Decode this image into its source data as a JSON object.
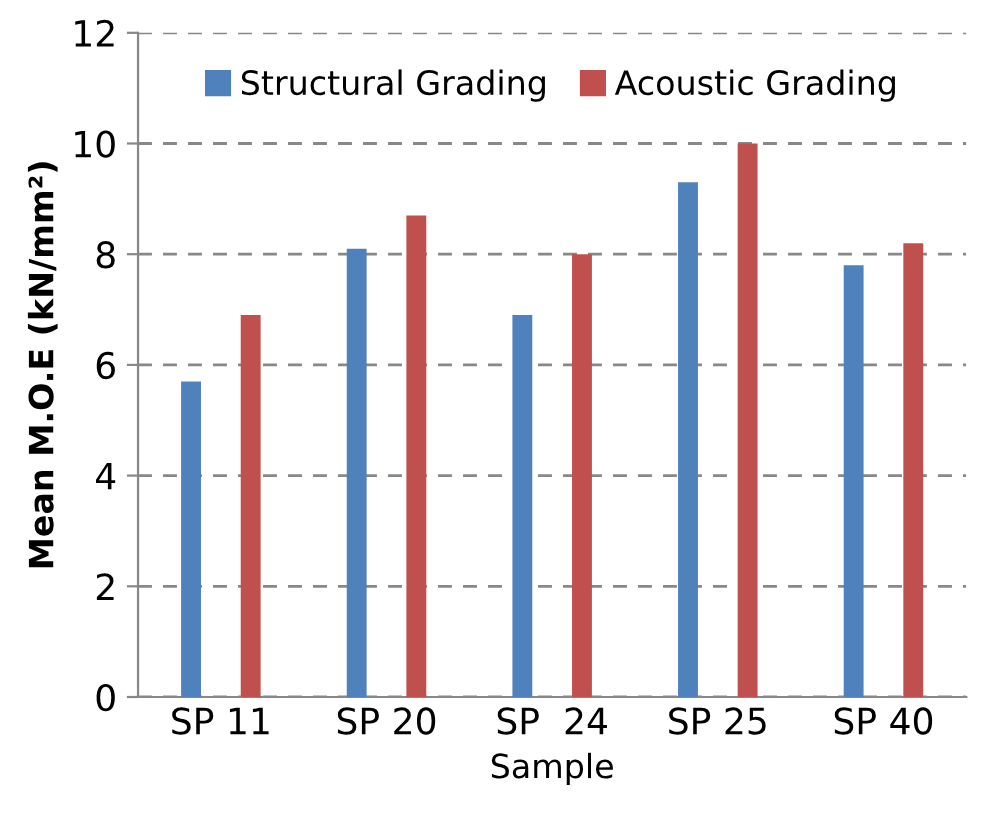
{
  "chart_data": {
    "type": "bar",
    "xlabel": "Sample",
    "ylabel": "Mean M.O.E (kN/mm²)",
    "categories": [
      "SP 11",
      "SP 20",
      "SP  24",
      "SP 25",
      "SP 40"
    ],
    "series": [
      {
        "name": "Structural Grading",
        "color": "#4f81bd",
        "values": [
          5.7,
          8.1,
          6.9,
          9.3,
          7.8
        ]
      },
      {
        "name": "Acoustic Grading",
        "color": "#c0504d",
        "values": [
          6.9,
          8.7,
          8.0,
          10.0,
          8.2
        ]
      }
    ],
    "ylim": [
      0,
      12
    ],
    "yticks": [
      0,
      2,
      4,
      6,
      8,
      10,
      12
    ],
    "grid": "y",
    "legend": "top"
  }
}
